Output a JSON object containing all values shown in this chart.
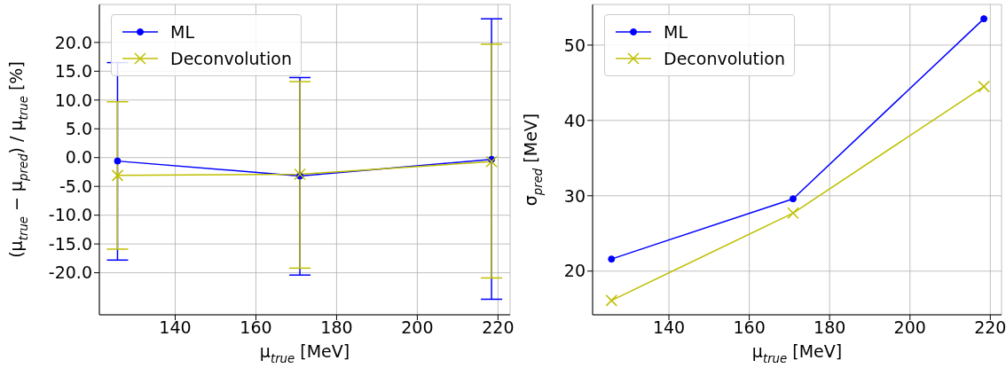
{
  "chart_data": [
    {
      "type": "line",
      "xlabel": "μ$_{true}$ [MeV]",
      "ylabel": "(μ$_{true}$ − μ$_{pred}$) / μ$_{true}$ [%]",
      "x": [
        125.7,
        170.9,
        218.4
      ],
      "xlim": [
        121.2,
        223
      ],
      "xticks": [
        140,
        160,
        180,
        200,
        220
      ],
      "ylim": [
        -27.3,
        26.6
      ],
      "yticks": [
        {
          "value": -20,
          "label": "-20.0"
        },
        {
          "value": -15,
          "label": "-15.0"
        },
        {
          "value": -10,
          "label": "-10.0"
        },
        {
          "value": -5,
          "label": "-5.0"
        },
        {
          "value": 0,
          "label": "0.0"
        },
        {
          "value": 5,
          "label": "5.0"
        },
        {
          "value": 10,
          "label": "10.0"
        },
        {
          "value": 15,
          "label": "15.0"
        },
        {
          "value": 20,
          "label": "20.0"
        }
      ],
      "grid": true,
      "legend": "top left",
      "series": [
        {
          "name": "ML",
          "color": "#0000ff",
          "marker": "circle",
          "values": [
            -0.6,
            -3.2,
            -0.3
          ],
          "errors": [
            [
              -17.8,
              16.5
            ],
            [
              -20.4,
              13.9
            ],
            [
              -24.6,
              24.1
            ]
          ]
        },
        {
          "name": "Deconvolution",
          "color": "#bfbf00",
          "marker": "cross",
          "values": [
            -3.1,
            -2.9,
            -0.7
          ],
          "errors": [
            [
              -15.9,
              9.7
            ],
            [
              -19.2,
              13.2
            ],
            [
              -20.9,
              19.7
            ]
          ]
        }
      ]
    },
    {
      "type": "line",
      "xlabel": "μ$_{true}$ [MeV]",
      "ylabel": "σ$_{pred}$ [MeV]",
      "x": [
        125.7,
        170.9,
        218.4
      ],
      "xlim": [
        121,
        222.8
      ],
      "xticks": [
        140,
        160,
        180,
        200,
        220
      ],
      "ylim": [
        14.2,
        55.4
      ],
      "yticks": [
        20,
        30,
        40,
        50
      ],
      "grid": true,
      "legend": "top left",
      "series": [
        {
          "name": "ML",
          "color": "#0000ff",
          "marker": "circle",
          "values": [
            21.6,
            29.6,
            53.5
          ]
        },
        {
          "name": "Deconvolution",
          "color": "#bfbf00",
          "marker": "cross",
          "values": [
            16.1,
            27.7,
            44.5
          ]
        }
      ]
    }
  ]
}
